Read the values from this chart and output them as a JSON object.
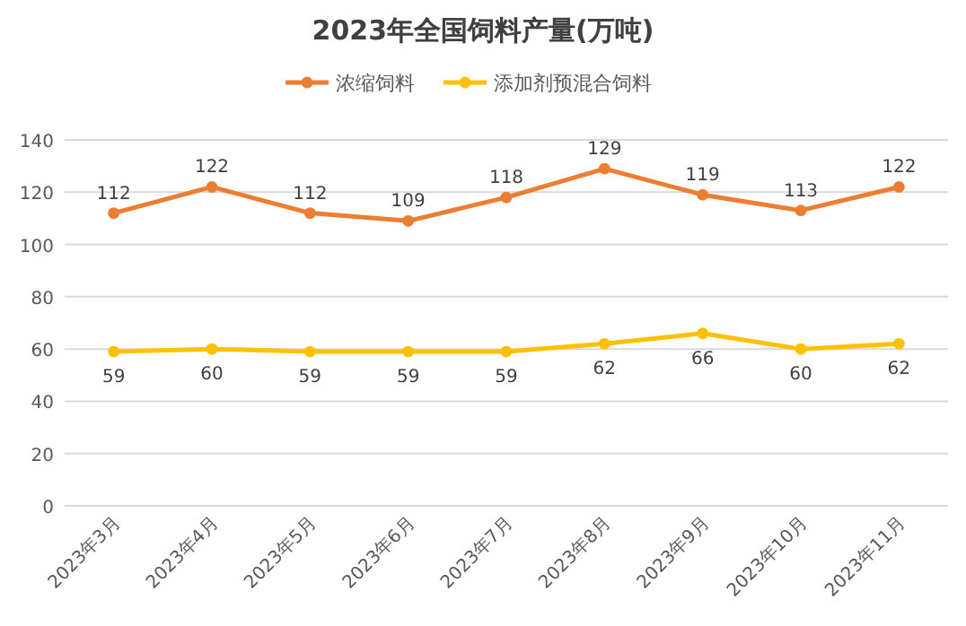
{
  "chart_data": {
    "type": "line",
    "title": "2023年全国饲料产量(万吨)",
    "categories": [
      "2023年3月",
      "2023年4月",
      "2023年5月",
      "2023年6月",
      "2023年7月",
      "2023年8月",
      "2023年9月",
      "2023年10月",
      "2023年11月"
    ],
    "series": [
      {
        "name": "浓缩饲料",
        "color": "#ed7d31",
        "values": [
          112,
          122,
          112,
          109,
          118,
          129,
          119,
          113,
          122
        ]
      },
      {
        "name": "添加剂预混合饲料",
        "color": "#ffc000",
        "values": [
          59,
          60,
          59,
          59,
          59,
          62,
          66,
          60,
          62
        ]
      }
    ],
    "ylim": [
      0,
      140
    ],
    "yticks": [
      0,
      20,
      40,
      60,
      80,
      100,
      120,
      140
    ],
    "grid": "y",
    "legend": "top",
    "marker": "circle",
    "line_style": "solid",
    "data_labels": true
  }
}
